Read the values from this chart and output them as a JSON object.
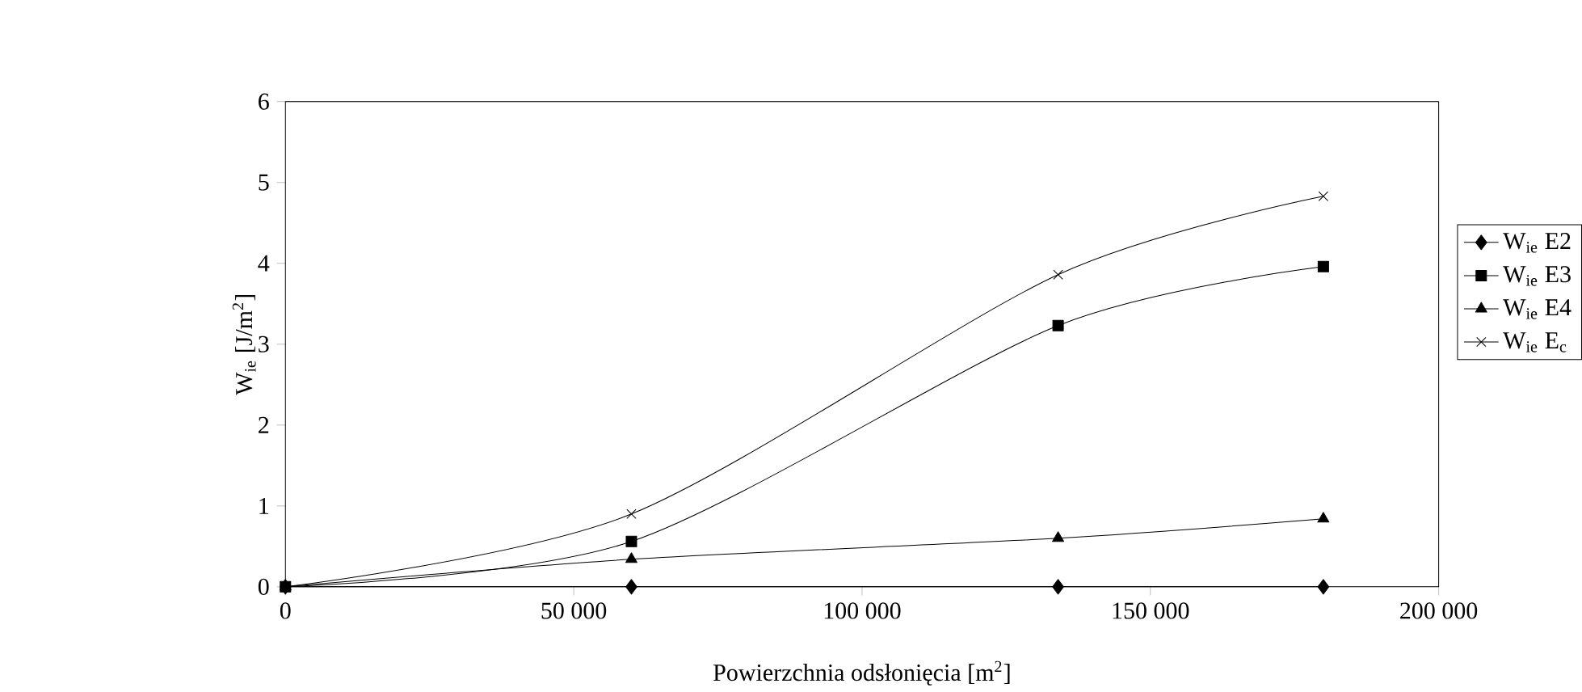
{
  "chart_data": {
    "type": "line",
    "xlabel": "Powierzchnia odsłonięcia [m$^{2}$]",
    "ylabel": "W$_{ie}$ [J/m$^{2}$]",
    "x": [
      0,
      60000,
      134000,
      180000
    ],
    "series": [
      {
        "name": "W$_{ie}$ E2",
        "color": "#000000",
        "marker": "diamond",
        "values": [
          0,
          0,
          0,
          0
        ]
      },
      {
        "name": "W$_{ie}$ E3",
        "color": "#000000",
        "marker": "square",
        "values": [
          0,
          0.56,
          3.23,
          3.96
        ]
      },
      {
        "name": "W$_{ie}$ E4",
        "color": "#000000",
        "marker": "triangle",
        "values": [
          0,
          0.34,
          0.6,
          0.84
        ]
      },
      {
        "name": "W$_{ie}$ E$_{c}$",
        "color": "#000000",
        "marker": "cross",
        "values": [
          0,
          0.9,
          3.86,
          4.83
        ]
      }
    ],
    "xlim": [
      0,
      200000
    ],
    "ylim": [
      0,
      6
    ],
    "xticks": [
      0,
      {
        "value": 50000,
        "label": "50 000"
      },
      {
        "value": 100000,
        "label": "100 000"
      },
      {
        "value": 150000,
        "label": "150 000"
      },
      {
        "value": 200000,
        "label": "200 000"
      }
    ],
    "yticks": [
      0,
      1,
      2,
      3,
      4,
      5,
      6
    ],
    "grid": false,
    "legend": "right",
    "line_style": "solid"
  }
}
